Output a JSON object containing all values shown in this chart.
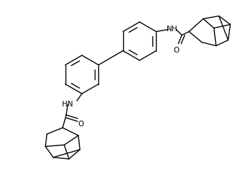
{
  "background_color": "#ffffff",
  "line_color": "#000000",
  "line_width": 1.0,
  "text_color": "#000000",
  "font_size": 7.5,
  "figsize": [
    3.37,
    2.41
  ],
  "dpi": 100,
  "xlim": [
    0,
    337
  ],
  "ylim": [
    0,
    241
  ]
}
